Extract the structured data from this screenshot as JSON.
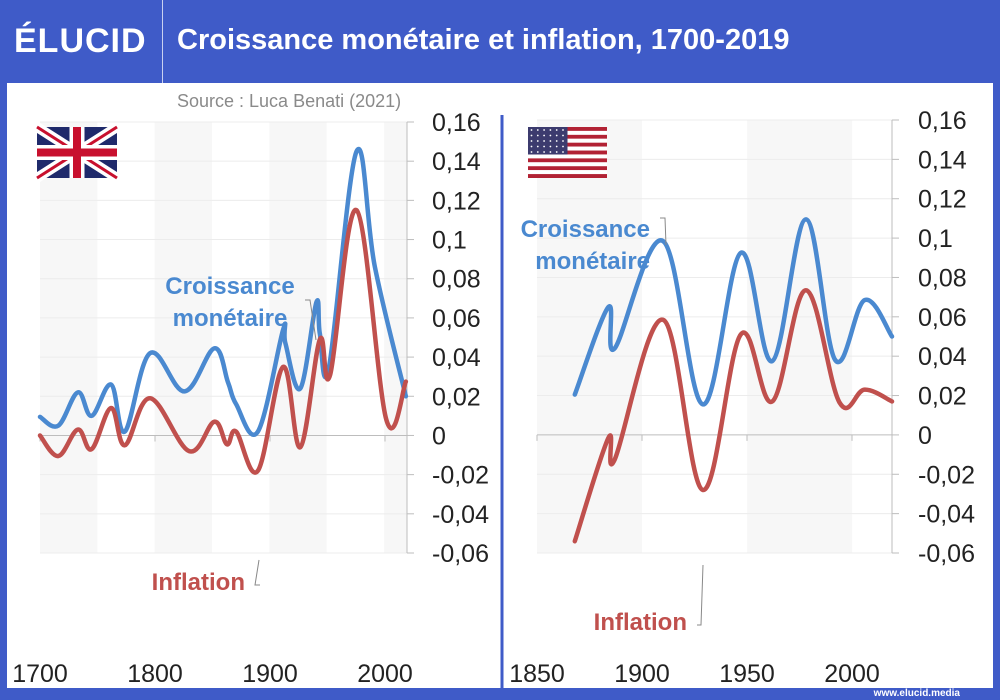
{
  "header": {
    "logo": "ÉLUCID",
    "title": "Croissance monétaire et inflation, 1700-2019"
  },
  "source": "Source : Luca Benati (2021)",
  "credit": "www.elucid.media",
  "colors": {
    "frame": "#3f5bc8",
    "money": "#4a89d0",
    "inflation": "#c0504d"
  },
  "chart_data": [
    {
      "type": "line",
      "country": "United Kingdom",
      "flag_icon": "uk-flag",
      "xlim": [
        1700,
        2020
      ],
      "ylim": [
        -0.06,
        0.16
      ],
      "x_ticks": [
        "1700",
        "1800",
        "1900",
        "2000"
      ],
      "y_ticks": [
        "0,16",
        "0,14",
        "0,12",
        "0,1",
        "0,08",
        "0,06",
        "0,04",
        "0,02",
        "0",
        "-0,02",
        "-0,04",
        "-0,06"
      ],
      "grid": true,
      "series": [
        {
          "name": "Croissance monétaire",
          "label_lines": [
            "Croissance",
            "monétaire"
          ],
          "color": "#4a89d0",
          "points": [
            [
              1700,
              0.0095
            ],
            [
              1716,
              0.005
            ],
            [
              1733,
              0.022
            ],
            [
              1745,
              0.01
            ],
            [
              1762,
              0.026
            ],
            [
              1774,
              0.002
            ],
            [
              1796,
              0.042
            ],
            [
              1826,
              0.0225
            ],
            [
              1852,
              0.0445
            ],
            [
              1864,
              0.027
            ],
            [
              1871,
              0.016
            ],
            [
              1890,
              0.002
            ],
            [
              1912,
              0.054
            ],
            [
              1914,
              0.047
            ],
            [
              1927,
              0.024
            ],
            [
              1941,
              0.068
            ],
            [
              1944,
              0.052
            ],
            [
              1952,
              0.035
            ],
            [
              1976,
              0.145
            ],
            [
              1992,
              0.086
            ],
            [
              2019,
              0.02
            ]
          ]
        },
        {
          "name": "Inflation",
          "label_lines": [
            "Inflation"
          ],
          "color": "#c0504d",
          "points": [
            [
              1700,
              0
            ],
            [
              1716,
              -0.0105
            ],
            [
              1733,
              0.003
            ],
            [
              1745,
              -0.007
            ],
            [
              1762,
              0.014
            ],
            [
              1774,
              -0.005
            ],
            [
              1796,
              0.019
            ],
            [
              1830,
              -0.008
            ],
            [
              1852,
              0.007
            ],
            [
              1863,
              -0.0045
            ],
            [
              1871,
              0.002
            ],
            [
              1890,
              -0.018
            ],
            [
              1912,
              0.035
            ],
            [
              1927,
              -0.006
            ],
            [
              1944,
              0.049
            ],
            [
              1953,
              0.031
            ],
            [
              1976,
              0.115
            ],
            [
              2002,
              0.008
            ],
            [
              2019,
              0.0275
            ]
          ]
        }
      ]
    },
    {
      "type": "line",
      "country": "United States",
      "flag_icon": "us-flag",
      "xlim": [
        1850,
        2019
      ],
      "ylim": [
        -0.06,
        0.16
      ],
      "x_ticks": [
        "1850",
        "1900",
        "1950",
        "2000"
      ],
      "y_ticks": [
        "0,16",
        "0,14",
        "0,12",
        "0,1",
        "0,08",
        "0,06",
        "0,04",
        "0,02",
        "0",
        "-0,02",
        "-0,04",
        "-0,06"
      ],
      "grid": true,
      "series": [
        {
          "name": "Croissance monétaire",
          "label_lines": [
            "Croissance",
            "monétaire"
          ],
          "color": "#4a89d0",
          "points": [
            [
              1868,
              0.0205
            ],
            [
              1884,
              0.065
            ],
            [
              1887,
              0.044
            ],
            [
              1910,
              0.0985
            ],
            [
              1929,
              0.0155
            ],
            [
              1947,
              0.0925
            ],
            [
              1962,
              0.0375
            ],
            [
              1978,
              0.1095
            ],
            [
              1992,
              0.038
            ],
            [
              2006,
              0.0685
            ],
            [
              2019,
              0.05
            ]
          ]
        },
        {
          "name": "Inflation",
          "label_lines": [
            "Inflation"
          ],
          "color": "#c0504d",
          "points": [
            [
              1868,
              -0.054
            ],
            [
              1884,
              -0.0015
            ],
            [
              1887,
              -0.0125
            ],
            [
              1910,
              0.0585
            ],
            [
              1929,
              -0.028
            ],
            [
              1947,
              0.051
            ],
            [
              1962,
              0.017
            ],
            [
              1978,
              0.0735
            ],
            [
              1994,
              0.0165
            ],
            [
              2006,
              0.023
            ],
            [
              2019,
              0.017
            ]
          ]
        }
      ]
    }
  ]
}
